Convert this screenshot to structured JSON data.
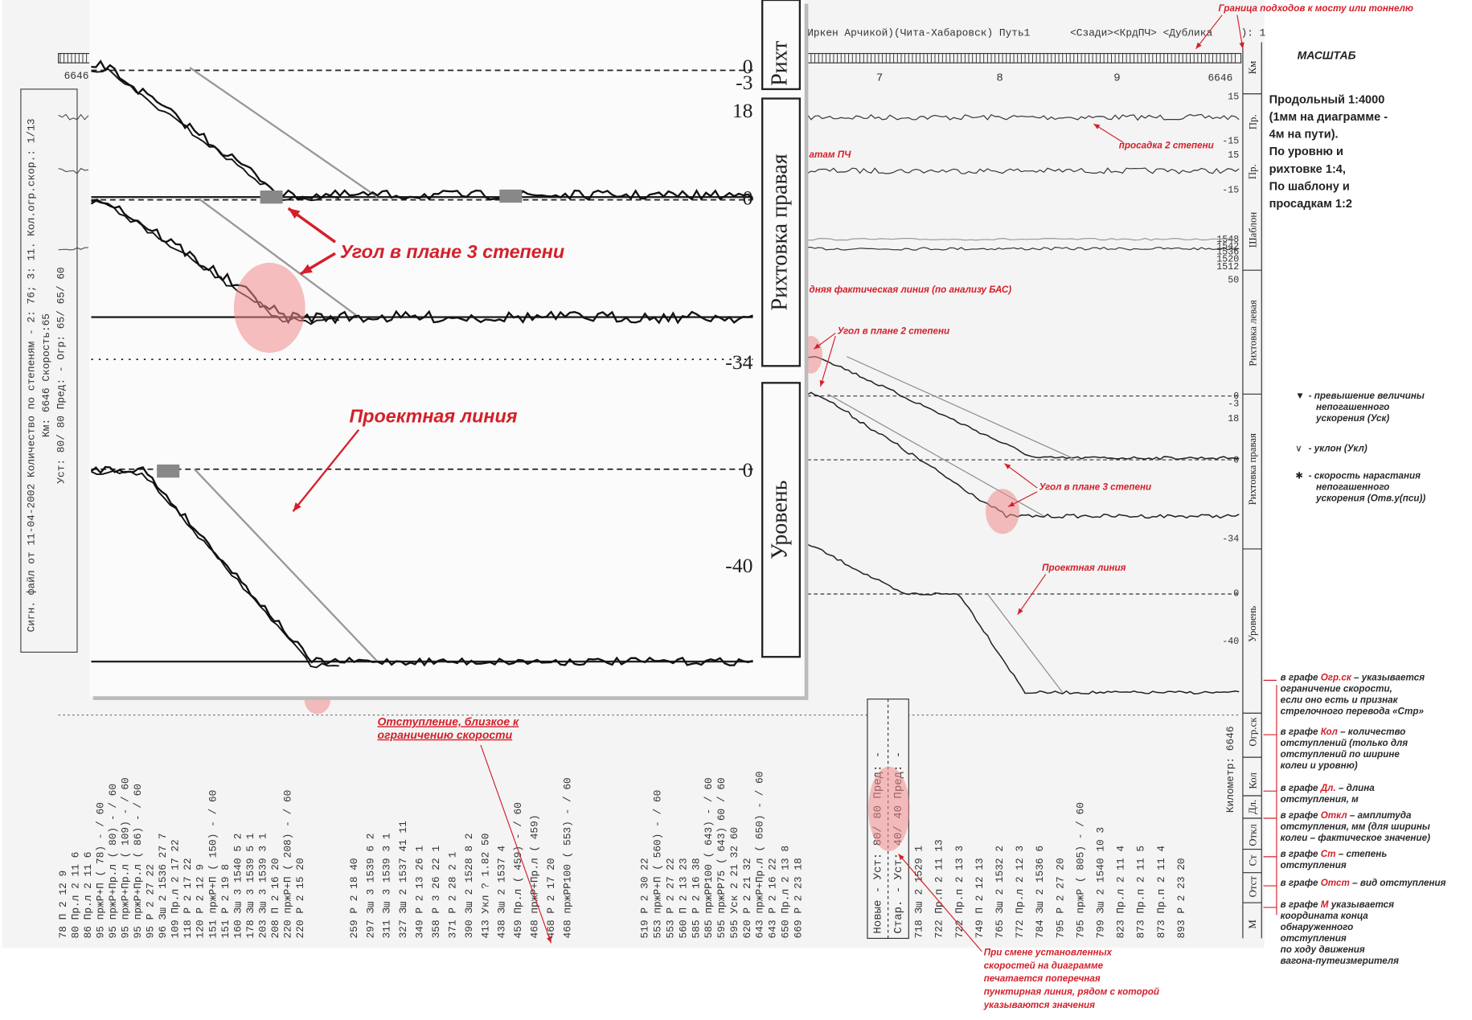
{
  "header": {
    "route": "Иркен Арчикой)(Чита-Хабаровск) Путь1",
    "flags": "<Сзади><КрдПЧ> <Дублика",
    "page": "): 1"
  },
  "side_header": [
    "Сигн. файл от 11-04-2002 Количество по степеням - 2: 76; 3: 11. Кол.огр.скор.: 1/13",
    "Км: 6646   Скорость:65",
    "Уст: 80/ 80 Пред: -  Огр: 65/ 65/ 60"
  ],
  "inset": {
    "labels": [
      "Рихт",
      "Рихтовка правая",
      "Уровень"
    ],
    "ticks": [
      "0",
      "-3",
      "18",
      "0",
      "-34",
      "0",
      "-40"
    ],
    "angle_note": "Угол в плане 3 степени",
    "design_note": "Проектная линия"
  },
  "chart": {
    "km": [
      "7",
      "8",
      "9",
      "6646"
    ],
    "km_left": "6646",
    "track_labels": [
      "Км",
      "Пр.",
      "Пр.",
      "Шаблон",
      "Рихтовка левая",
      "Рихтовка правая",
      "Уровень"
    ],
    "ticks": [
      "15",
      "-15",
      "15",
      "-15",
      "1548",
      "1542",
      "1536",
      "1520",
      "1512",
      "50",
      "0",
      "-3",
      "18",
      "0",
      "-34",
      "0",
      "-40"
    ]
  },
  "annotations": {
    "boundary": "Граница подходов к мосту или тоннелю",
    "sag": "просадка 2 степени",
    "pch": "атам ПЧ",
    "actual_line": "дняя фактическая линия (по анализу БАС)",
    "angle2": "Угол в плане 2 степени",
    "angle3": "Угол в плане 3 степени",
    "design": "Проектная линия",
    "near_limit": [
      "Отступление, близкое к",
      "ограничению скорости"
    ],
    "speed_change": [
      "При смене установленных",
      "скоростей на диаграмме",
      "печатается поперечная",
      "пунктирная линия, рядом с которой",
      "указываются значения"
    ]
  },
  "scale": {
    "title": "МАСШТАБ",
    "lines": [
      "Продольный 1:4000",
      "(1мм на диаграмме -",
      "4м на пути).",
      "По уровню и",
      "рихтовке 1:4,",
      "По шаблону и",
      "просадкам 1:2"
    ]
  },
  "legend": [
    {
      "symbol": "▼",
      "lines": [
        "- превышение величины",
        "непогашенного",
        "ускорения (Уск)"
      ]
    },
    {
      "symbol": "∨",
      "lines": [
        "- уклон (Укл)"
      ]
    },
    {
      "symbol": "✱",
      "lines": [
        "- скорость нарастания",
        "непогашенного",
        "ускорения (Отв.у(пси))"
      ]
    }
  ],
  "columns": [
    {
      "pre": "в графе ",
      "key": "Огр.ск",
      "lines": [
        " – указывается",
        "ограничение скорости,",
        "если оно есть и признак",
        "стрелочного перевода «Стр»"
      ]
    },
    {
      "pre": "в графе ",
      "key": "Кол",
      "lines": [
        " – количество",
        "отступлений (только для",
        "отступлений по ширине",
        "колеи и уровню)"
      ]
    },
    {
      "pre": "в графе ",
      "key": "Дл.",
      "lines": [
        " – длина",
        "отступления, м"
      ]
    },
    {
      "pre": "в графе ",
      "key": "Откл",
      "lines": [
        " – амплитуда",
        "отступления, мм (для ширины",
        "колеи – фактическое значение)"
      ]
    },
    {
      "pre": "в графе ",
      "key": "Ст",
      "lines": [
        " – степень",
        "отступления"
      ]
    },
    {
      "pre": "в графе ",
      "key": "Отст",
      "lines": [
        " – вид отступления"
      ]
    },
    {
      "pre": "в графе ",
      "key": "М",
      "lines": [
        " указывается",
        "координата конца",
        "обнаруженного",
        "отступления",
        "по ходу движения",
        "вагона-путеизмерителя"
      ]
    }
  ],
  "table": {
    "headers": [
      "Огр.ск",
      "Кол",
      "Дл.",
      "Откл",
      "Ст",
      "Отст",
      "М"
    ],
    "km": "Километр: 6646",
    "speed_box": [
      "Новые - Уст: 80/ 80 Пред: -",
      "Стар. - Уст: 40/ 40 Пред: -"
    ],
    "blocks": [
      [
        "78 П    2  12  9",
        "80 Пр.л 2  11  6",
        "86 Пр.л 2  11  6",
        "95 пржР+П  ( 78)     - / 60",
        "95 пржР+Пр.л ( 80)   - / 60",
        "95 пржР+Пр.л ( 109)  - / 60",
        "95 пржР+Пр.л ( 86)   - / 60",
        "95 Р    2  27  22",
        "96 Зш   2 1536  27   7",
        "109 Пр.л 2  17  22",
        "118 Р    2  17  22",
        "120 Р    2  12   9",
        "151 пржР+П ( 150)   - / 60",
        "151 Р    2  19   8",
        "160 Зш   3 1540  5  2",
        "178 Зш   3 1539  5  1",
        "203 Зш   3 1539  3  1",
        "208 П    2  16  20",
        "220 пржР+П ( 208)  - / 60",
        "220 Р    2  15  20"
      ],
      [
        "259 Р    2  18  40",
        "297 Зш   3 1539  6  2",
        "311 Зш   3 1539  3  1",
        "327 Зш   2 1537  41  11",
        "349 Р    2  13  26  1",
        "358 Р    3  26  22  1",
        "371 Р    2  28  2  1",
        "390 Зш   2 1528  8  2",
        "413 Укл ?  1.82  50",
        "438 Зш   2 1537  4",
        "459 Пр.л ( 459)   - / 60",
        "468 пржР+Пр.л ( 459)",
        "468 Р    2  17  20",
        "468 пржРР100 ( 553)  - / 60"
      ],
      [
        "519 Р    2  30  22",
        "553 пржР+П ( 560)   - / 60",
        "553 Р    2  27  22",
        "560 П    2  13  23",
        "585 Р    2  16  38",
        "585 пржРР100 ( 643)  - / 60",
        "595 пржРР75 ( 643)  60 / 60",
        "595 Уск  2  21  32  60",
        "620 Р    2  21  32",
        "643 пржР+Пр.л ( 650)  - / 60",
        "643 Р    2  16  22",
        "650 Пр.л 2  13  8",
        "669 Р    2  23  18"
      ],
      [
        "718 Зш   2 1529   1",
        "722 Пр.п 2  11  13",
        "722 Пр.п 2  13   3",
        "749 П    2  12  13",
        "765 Зш   2 1532   2",
        "772 Пр.л 2  12   3",
        "784 Зш   2 1536   6",
        "795 Р    2  27  20",
        "795 пржР ( 805)   - / 60",
        "799 Зш   2 1540  10  3",
        "823 Пр.л 2  11   4",
        "873 Пр.п 2  11   5",
        "873 Пр.п 2  11   4",
        "893 Р    2  23  20"
      ]
    ]
  }
}
